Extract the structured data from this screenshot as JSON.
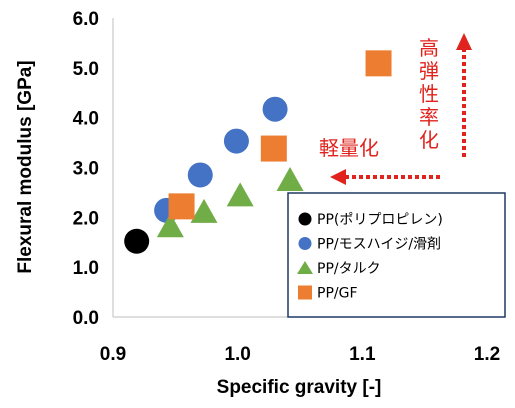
{
  "chart_data": {
    "type": "scatter",
    "xlabel": "Specific gravity [-]",
    "ylabel": "Flexural modulus [GPa]",
    "xlim": [
      0.9,
      1.2
    ],
    "ylim": [
      0.0,
      6.0
    ],
    "x_ticks": [
      "0.9",
      "1.0",
      "1.1",
      "1.2"
    ],
    "y_ticks": [
      "0.0",
      "1.0",
      "2.0",
      "3.0",
      "4.0",
      "5.0",
      "6.0"
    ],
    "grid": false,
    "legend_position": "bottom-right",
    "series": [
      {
        "name": "PP(ポリプロピレン)",
        "marker": "circle",
        "color": "#000000",
        "points": [
          {
            "x": 0.919,
            "y": 1.52
          }
        ]
      },
      {
        "name": "PP/モスハイジ/滑剤",
        "marker": "circle",
        "color": "#4472c4",
        "points": [
          {
            "x": 0.943,
            "y": 2.14
          },
          {
            "x": 0.97,
            "y": 2.85
          },
          {
            "x": 0.999,
            "y": 3.53
          },
          {
            "x": 1.03,
            "y": 4.17
          }
        ]
      },
      {
        "name": "PP/タルク",
        "marker": "triangle",
        "color": "#70ad47",
        "points": [
          {
            "x": 0.946,
            "y": 1.8
          },
          {
            "x": 0.973,
            "y": 2.09
          },
          {
            "x": 1.002,
            "y": 2.42
          },
          {
            "x": 1.042,
            "y": 2.73
          }
        ]
      },
      {
        "name": "PP/GF",
        "marker": "square",
        "color": "#ed7d31",
        "points": [
          {
            "x": 0.955,
            "y": 2.22
          },
          {
            "x": 1.029,
            "y": 3.38
          },
          {
            "x": 1.113,
            "y": 5.09
          }
        ]
      }
    ],
    "annotations": {
      "lighter": "軽量化",
      "stiffer": "高弾性率化",
      "arrow_color": "#e0231d"
    }
  }
}
